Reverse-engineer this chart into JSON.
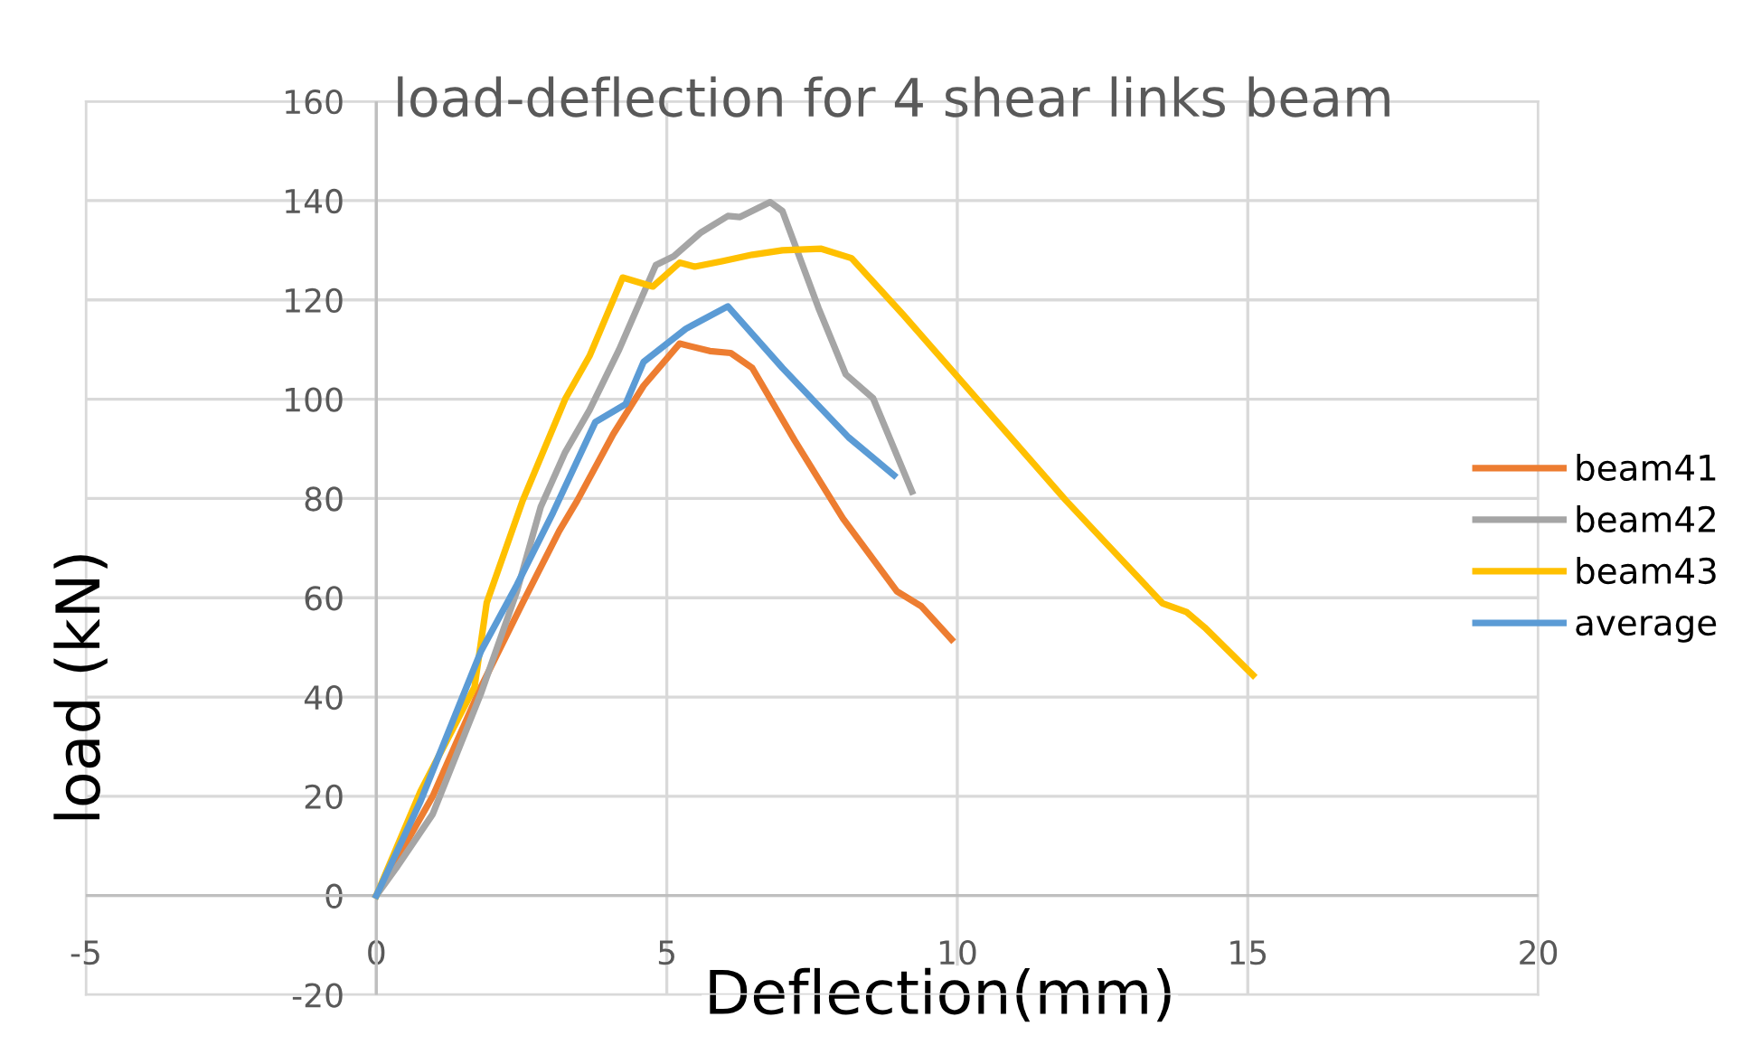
{
  "chart_data": {
    "type": "line",
    "title": "load-deflection for 4 shear links beam",
    "xlabel": "Deflection(mm)",
    "ylabel": "load (kN)",
    "xlim": [
      -5,
      20
    ],
    "xticks": [
      -5,
      0,
      5,
      10,
      15,
      20
    ],
    "ylim": [
      -20,
      160
    ],
    "yticks": [
      -20,
      0,
      20,
      40,
      60,
      80,
      100,
      120,
      140,
      160
    ],
    "grid": true,
    "legend": "right",
    "marker": "none",
    "line_style": "solid",
    "series": [
      {
        "name": "beam41",
        "color": "#ed7d31",
        "x": [
          0,
          0.97,
          1.8,
          2.52,
          3.15,
          3.46,
          4.08,
          4.6,
          5.22,
          5.74,
          6.1,
          6.47,
          7.2,
          8.03,
          8.96,
          9.38,
          9.9
        ],
        "values": [
          0,
          20,
          42,
          59,
          73.5,
          79.6,
          93,
          102.7,
          111.2,
          109.7,
          109.3,
          106.3,
          91.7,
          76,
          61.3,
          58.3,
          51.6
        ]
      },
      {
        "name": "beam42",
        "color": "#a5a5a5",
        "x": [
          0,
          0.34,
          0.97,
          1.8,
          2.42,
          2.83,
          3.25,
          3.67,
          4.18,
          4.81,
          5.12,
          5.59,
          6.05,
          6.26,
          6.78,
          6.99,
          7.61,
          8.08,
          8.55,
          9.22
        ],
        "values": [
          0,
          5.5,
          16.4,
          40.7,
          61.3,
          78.3,
          89.3,
          97.8,
          110,
          127,
          128.8,
          133.6,
          136.9,
          136.7,
          139.7,
          137.9,
          118.4,
          105,
          100.2,
          81.4
        ]
      },
      {
        "name": "beam43",
        "color": "#ffc000",
        "x": [
          0,
          0.76,
          1.69,
          1.9,
          2.52,
          3.25,
          3.67,
          4.24,
          4.76,
          5.22,
          5.48,
          5.95,
          6.47,
          6.99,
          7.66,
          8.18,
          9.07,
          10.05,
          11.87,
          13.53,
          13.95,
          14.26,
          15.09
        ],
        "values": [
          0,
          21,
          42,
          59,
          79.6,
          100,
          108.7,
          124.5,
          122.7,
          127.5,
          126.7,
          127.8,
          129.1,
          130,
          130.3,
          128.4,
          117,
          103.9,
          79.6,
          58.9,
          57.1,
          54,
          44.4
        ]
      },
      {
        "name": "average",
        "color": "#5b9bd5",
        "x": [
          0,
          0.76,
          1.8,
          2.42,
          3.04,
          3.77,
          4.29,
          4.6,
          5.33,
          6.05,
          6.99,
          8.13,
          8.91
        ],
        "values": [
          0,
          19,
          49.2,
          62.6,
          77.1,
          95.4,
          99,
          107.5,
          114.2,
          118.7,
          106.3,
          92.3,
          84.7
        ]
      }
    ]
  }
}
